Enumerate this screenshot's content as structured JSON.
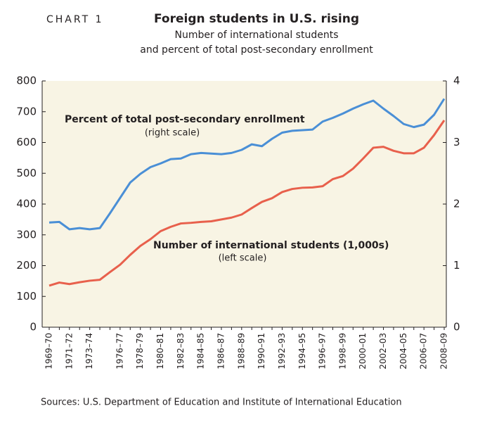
{
  "chart_data": {
    "type": "line",
    "label": "CHART 1",
    "title": "Foreign students in U.S. rising",
    "subtitle": [
      "Number of international students",
      "and percent of total post-secondary enrollment"
    ],
    "source": "Sources: U.S. Department of Education and Institute of International Education",
    "categories": [
      "1969–70",
      null,
      "1971–72",
      null,
      "1973–74",
      null,
      null,
      "1976–77",
      null,
      "1978–79",
      null,
      "1980–81",
      null,
      "1982–83",
      null,
      "1984–85",
      null,
      "1986–87",
      null,
      "1988–89",
      null,
      "1990–91",
      null,
      "1992–93",
      null,
      "1994–95",
      null,
      "1996–97",
      null,
      "1998–99",
      null,
      "2000–01",
      null,
      "2002–03",
      null,
      "2004–05",
      null,
      "2006–07",
      null,
      "2008–09"
    ],
    "ylim": [
      0,
      800
    ],
    "yticks": [
      0,
      100,
      200,
      300,
      400,
      500,
      600,
      700,
      800
    ],
    "y2lim": [
      0,
      4
    ],
    "y2ticks": [
      0,
      1,
      2,
      3,
      4
    ],
    "series": [
      {
        "name": "Percent of total post-secondary enrollment",
        "note": "(right scale)",
        "axis": "y2",
        "color": "#4a8fd6",
        "values": [
          1.7,
          1.71,
          1.59,
          1.61,
          1.59,
          1.61,
          1.85,
          2.1,
          2.35,
          2.49,
          2.6,
          2.66,
          2.73,
          2.74,
          2.81,
          2.83,
          2.82,
          2.81,
          2.83,
          2.88,
          2.97,
          2.94,
          3.06,
          3.16,
          3.19,
          3.2,
          3.21,
          3.34,
          3.4,
          3.47,
          3.55,
          3.62,
          3.68,
          3.55,
          3.43,
          3.3,
          3.25,
          3.29,
          3.45,
          3.71
        ]
      },
      {
        "name": "Number of international students (1,000s)",
        "note": "(left scale)",
        "color": "#e8604c",
        "values": [
          135,
          145,
          140,
          146,
          151,
          154,
          179,
          203,
          235,
          264,
          286,
          312,
          326,
          337,
          339,
          342,
          344,
          350,
          356,
          366,
          387,
          407,
          419,
          439,
          449,
          453,
          454,
          458,
          481,
          491,
          515,
          548,
          583,
          586,
          573,
          565,
          565,
          583,
          624,
          672
        ]
      }
    ]
  }
}
